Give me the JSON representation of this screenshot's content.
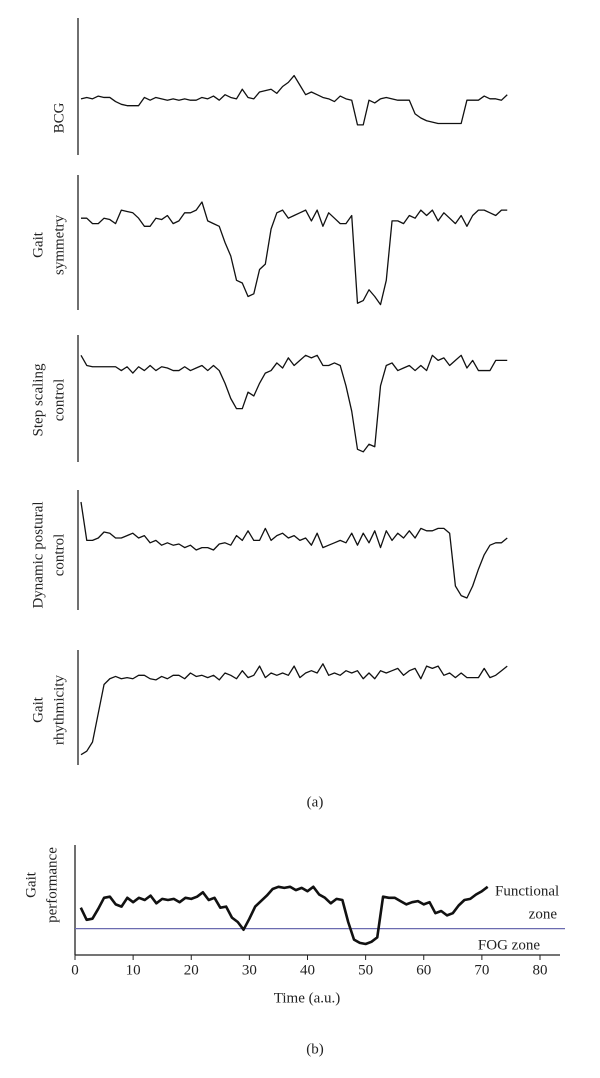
{
  "chart_data": [
    {
      "type": "line",
      "ylabel": [
        "BCG"
      ],
      "ylim": [
        0,
        100
      ],
      "values": [
        41,
        42,
        41,
        43,
        42,
        42,
        39,
        37,
        36,
        36,
        36,
        42,
        40,
        42,
        41,
        40,
        41,
        40,
        41,
        40,
        40,
        42,
        41,
        43,
        40,
        44,
        42,
        41,
        48,
        42,
        41,
        46,
        47,
        48,
        45,
        50,
        53,
        58,
        51,
        44,
        46,
        44,
        42,
        41,
        39,
        43,
        41,
        40,
        22,
        22,
        40,
        38,
        41,
        42,
        41,
        40,
        40,
        40,
        30,
        27,
        25,
        24,
        23,
        23,
        23,
        23,
        23,
        40,
        40,
        40,
        43,
        41,
        41,
        40,
        44
      ]
    },
    {
      "type": "line",
      "ylabel": [
        "Gait",
        "symmetry"
      ],
      "ylim": [
        0,
        100
      ],
      "values": [
        68,
        68,
        64,
        64,
        68,
        67,
        64,
        74,
        73,
        72,
        68,
        62,
        62,
        68,
        67,
        70,
        64,
        66,
        72,
        72,
        74,
        80,
        66,
        64,
        62,
        50,
        40,
        22,
        20,
        10,
        12,
        30,
        34,
        60,
        72,
        74,
        68,
        70,
        72,
        74,
        66,
        74,
        62,
        72,
        68,
        64,
        64,
        70,
        5,
        7,
        15,
        10,
        4,
        22,
        66,
        66,
        64,
        70,
        68,
        74,
        70,
        74,
        66,
        72,
        68,
        64,
        70,
        62,
        70,
        74,
        74,
        72,
        70,
        74,
        74
      ]
    },
    {
      "type": "line",
      "ylabel": [
        "Step scaling",
        "control"
      ],
      "ylim": [
        0,
        100
      ],
      "values": [
        84,
        76,
        75,
        75,
        75,
        75,
        75,
        72,
        75,
        70,
        75,
        72,
        76,
        72,
        75,
        74,
        72,
        72,
        75,
        72,
        74,
        76,
        72,
        76,
        72,
        62,
        50,
        42,
        42,
        55,
        52,
        62,
        70,
        72,
        78,
        74,
        82,
        76,
        80,
        84,
        82,
        84,
        76,
        76,
        78,
        76,
        60,
        40,
        10,
        8,
        14,
        12,
        60,
        76,
        78,
        72,
        74,
        76,
        72,
        76,
        72,
        84,
        80,
        82,
        76,
        80,
        84,
        74,
        80,
        72,
        72,
        72,
        80,
        80,
        80
      ]
    },
    {
      "type": "line",
      "ylabel": [
        "Dynamic postural",
        "control"
      ],
      "ylim": [
        0,
        100
      ],
      "values": [
        90,
        58,
        58,
        60,
        65,
        64,
        60,
        60,
        62,
        64,
        60,
        62,
        56,
        58,
        54,
        56,
        54,
        55,
        52,
        54,
        50,
        52,
        52,
        50,
        55,
        56,
        54,
        62,
        58,
        66,
        58,
        58,
        68,
        58,
        62,
        64,
        60,
        62,
        58,
        60,
        54,
        64,
        52,
        54,
        56,
        58,
        56,
        64,
        54,
        64,
        56,
        66,
        52,
        66,
        58,
        64,
        60,
        66,
        60,
        68,
        66,
        66,
        68,
        68,
        64,
        20,
        12,
        10,
        20,
        34,
        46,
        54,
        56,
        56,
        60
      ]
    },
    {
      "type": "line",
      "ylabel": [
        "Gait",
        "rhythmicity"
      ],
      "ylim": [
        0,
        100
      ],
      "values": [
        9,
        12,
        20,
        45,
        70,
        75,
        77,
        75,
        76,
        75,
        78,
        78,
        75,
        74,
        77,
        75,
        78,
        78,
        75,
        80,
        77,
        78,
        76,
        78,
        74,
        80,
        78,
        75,
        82,
        76,
        78,
        86,
        76,
        80,
        78,
        80,
        78,
        86,
        76,
        80,
        82,
        80,
        88,
        78,
        80,
        78,
        82,
        80,
        82,
        75,
        80,
        75,
        82,
        80,
        82,
        84,
        78,
        82,
        84,
        75,
        86,
        84,
        86,
        78,
        80,
        76,
        80,
        76,
        76,
        76,
        84,
        76,
        78,
        82,
        86
      ]
    },
    {
      "type": "line",
      "ylabel": [
        "Gait",
        "performance"
      ],
      "xlabel": "Time (a.u.)",
      "ylim": [
        0,
        100
      ],
      "xlim": [
        0,
        80
      ],
      "xticks": [
        0,
        10,
        20,
        30,
        40,
        50,
        60,
        70,
        80
      ],
      "threshold": 24,
      "threshold_color": "#6b6bb0",
      "annotations": [
        "Functional",
        "zone",
        "FOG zone"
      ],
      "x": [
        1,
        2,
        3,
        4,
        5,
        6,
        7,
        8,
        9,
        10,
        11,
        12,
        13,
        14,
        15,
        16,
        17,
        18,
        19,
        20,
        21,
        22,
        23,
        24,
        25,
        26,
        27,
        28,
        29,
        30,
        31,
        32,
        33,
        34,
        35,
        36,
        37,
        38,
        39,
        40,
        41,
        42,
        43,
        44,
        45,
        46,
        47,
        48,
        49,
        50,
        51,
        52,
        53,
        54,
        55,
        56,
        57,
        58,
        59,
        60,
        61,
        62,
        63,
        64,
        65,
        66,
        67,
        68,
        69,
        70,
        71
      ],
      "values": [
        43,
        32,
        33,
        42,
        52,
        53,
        46,
        44,
        52,
        48,
        52,
        50,
        54,
        47,
        51,
        50,
        51,
        48,
        52,
        51,
        53,
        57,
        50,
        52,
        43,
        44,
        34,
        30,
        23,
        33,
        44,
        49,
        54,
        60,
        62,
        61,
        62,
        59,
        61,
        58,
        62,
        55,
        52,
        47,
        51,
        50,
        30,
        14,
        11,
        10,
        12,
        16,
        53,
        52,
        52,
        49,
        46,
        48,
        49,
        46,
        48,
        38,
        40,
        36,
        38,
        45,
        50,
        51,
        55,
        58,
        62
      ]
    }
  ],
  "captions": [
    "(a)",
    "(b)"
  ]
}
